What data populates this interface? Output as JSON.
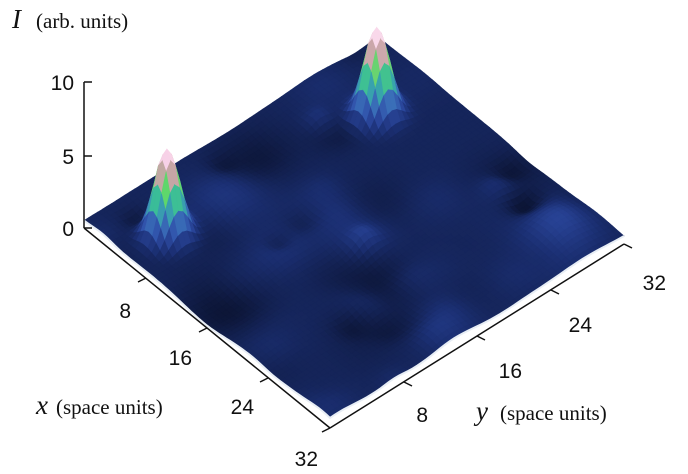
{
  "chart_data": {
    "type": "surface",
    "zlabel": {
      "symbol": "I",
      "units": "(arb. units)"
    },
    "xlabel": {
      "symbol": "x",
      "units": "(space units)"
    },
    "ylabel": {
      "symbol": "y",
      "units": "(space units)"
    },
    "zlim": [
      0,
      10
    ],
    "xlim": [
      0,
      32
    ],
    "ylim": [
      0,
      32
    ],
    "z_ticks": [
      "0",
      "5",
      "10"
    ],
    "x_ticks": [
      "8",
      "16",
      "24",
      "32"
    ],
    "y_ticks": [
      "8",
      "16",
      "24",
      "32"
    ],
    "peaks": [
      {
        "x": 6,
        "y": 4,
        "height": 6.0,
        "width": 1.1
      },
      {
        "x": 7,
        "y": 26,
        "height": 6.0,
        "width": 1.1
      }
    ],
    "background_level": 0.5,
    "colormap": [
      "#0c1535",
      "#1b2f72",
      "#2f4da8",
      "#3f7fc0",
      "#34b8a0",
      "#5fd86a",
      "#c7a5a6",
      "#f6c9e2",
      "#ffffff"
    ]
  }
}
